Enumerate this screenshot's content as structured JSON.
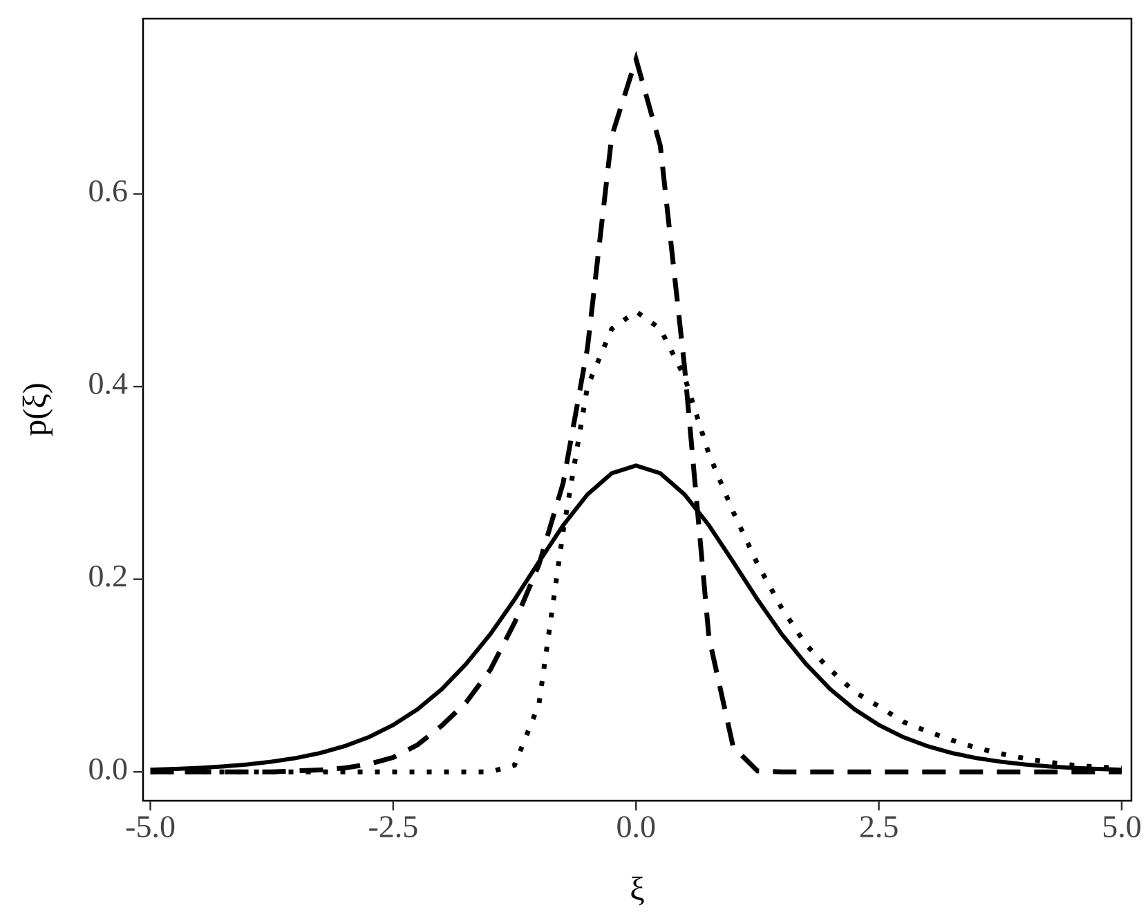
{
  "chart_data": {
    "type": "line",
    "xlabel": "ξ",
    "ylabel": "p(ξ)",
    "x": [
      -5,
      -4.75,
      -4.5,
      -4.25,
      -4,
      -3.75,
      -3.5,
      -3.25,
      -3,
      -2.75,
      -2.5,
      -2.25,
      -2,
      -1.75,
      -1.5,
      -1.25,
      -1,
      -0.75,
      -0.5,
      -0.25,
      0,
      0.25,
      0.5,
      0.75,
      1,
      1.25,
      1.5,
      1.75,
      2,
      2.25,
      2.5,
      2.75,
      3,
      3.25,
      3.5,
      3.75,
      4,
      4.25,
      4.5,
      4.75,
      5
    ],
    "series": [
      {
        "color": "#000000",
        "dash": "solid",
        "values": [
          0.0022,
          0.003,
          0.0041,
          0.0056,
          0.0077,
          0.0106,
          0.0144,
          0.0196,
          0.0267,
          0.0361,
          0.0487,
          0.0649,
          0.0858,
          0.112,
          0.143,
          0.179,
          0.218,
          0.256,
          0.288,
          0.31,
          0.318,
          0.31,
          0.288,
          0.256,
          0.218,
          0.179,
          0.143,
          0.112,
          0.0858,
          0.0649,
          0.0487,
          0.0361,
          0.0267,
          0.0196,
          0.0144,
          0.0106,
          0.0077,
          0.0056,
          0.0041,
          0.003,
          0.0022
        ]
      },
      {
        "color": "#000000",
        "dash": "dashed",
        "values": [
          0,
          0,
          0,
          0,
          0,
          0,
          0.001,
          0.002,
          0.004,
          0.008,
          0.015,
          0.028,
          0.048,
          0.072,
          0.106,
          0.155,
          0.215,
          0.3,
          0.44,
          0.66,
          0.74,
          0.65,
          0.42,
          0.14,
          0.026,
          0.001,
          0,
          0,
          0,
          0,
          0,
          0,
          0,
          0,
          0,
          0,
          0,
          0,
          0,
          0,
          0
        ]
      },
      {
        "color": "#000000",
        "dash": "dotted",
        "values": [
          0,
          0,
          0,
          0,
          0,
          0,
          0,
          0,
          0,
          0,
          0,
          0,
          0,
          0,
          0,
          0.007,
          0.07,
          0.25,
          0.4,
          0.46,
          0.478,
          0.46,
          0.41,
          0.33,
          0.27,
          0.216,
          0.17,
          0.132,
          0.106,
          0.083,
          0.068,
          0.052,
          0.042,
          0.033,
          0.025,
          0.019,
          0.014,
          0.01,
          0.007,
          0.005,
          0.004
        ]
      }
    ],
    "xlim": [
      -5.075,
      5.1
    ],
    "ylim": [
      -0.03,
      0.782
    ],
    "xticks": [
      {
        "value": -5,
        "label": "-5.0"
      },
      -2.5,
      {
        "value": 0,
        "label": "0.0"
      },
      2.5,
      {
        "value": 5,
        "label": "5.0"
      }
    ],
    "yticks": [
      {
        "value": 0,
        "label": "0.0"
      },
      0.2,
      0.4,
      0.6
    ],
    "grid": false
  }
}
